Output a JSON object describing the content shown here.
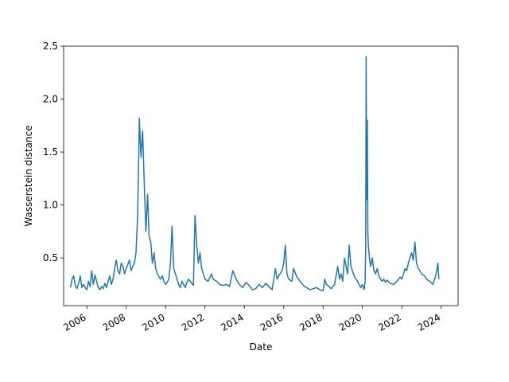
{
  "chart_data": {
    "type": "line",
    "title": "",
    "xlabel": "Date",
    "ylabel": "Wasserstein distance",
    "x_ticks": [
      "2006-01-01",
      "2008-01-01",
      "2010-01-01",
      "2012-01-01",
      "2014-01-01",
      "2016-01-01",
      "2018-01-01",
      "2020-01-01",
      "2022-01-01",
      "2024-01-01"
    ],
    "x_tick_labels": [
      "2006",
      "2008",
      "2010",
      "2012",
      "2014",
      "2016",
      "2018",
      "2020",
      "2022",
      "2024"
    ],
    "y_ticks": [
      0.5,
      1.0,
      1.5,
      2.0,
      2.5
    ],
    "y_tick_labels": [
      "0.5",
      "1.0",
      "1.5",
      "2.0",
      "2.5"
    ],
    "xlim": [
      "2004-10-27",
      "2024-11-10"
    ],
    "ylim": [
      0.05,
      2.5
    ],
    "grid": false,
    "series": [
      {
        "color": "#1f77b4",
        "x": [
          "2005-03-01",
          "2005-04-01",
          "2005-05-01",
          "2005-06-01",
          "2005-07-01",
          "2005-08-01",
          "2005-09-01",
          "2005-10-01",
          "2005-11-01",
          "2005-12-01",
          "2006-01-01",
          "2006-02-01",
          "2006-03-01",
          "2006-04-01",
          "2006-05-01",
          "2006-06-01",
          "2006-07-01",
          "2006-08-01",
          "2006-09-01",
          "2006-10-01",
          "2006-11-01",
          "2006-12-01",
          "2007-01-01",
          "2007-02-01",
          "2007-03-01",
          "2007-04-01",
          "2007-05-01",
          "2007-06-01",
          "2007-07-01",
          "2007-08-01",
          "2007-09-01",
          "2007-10-01",
          "2007-11-01",
          "2007-12-01",
          "2008-01-01",
          "2008-02-01",
          "2008-03-01",
          "2008-04-01",
          "2008-05-01",
          "2008-06-01",
          "2008-07-01",
          "2008-08-01",
          "2008-09-01",
          "2008-10-01",
          "2008-11-01",
          "2008-12-01",
          "2009-01-01",
          "2009-02-01",
          "2009-03-01",
          "2009-04-01",
          "2009-05-01",
          "2009-06-01",
          "2009-07-01",
          "2009-08-01",
          "2009-09-01",
          "2009-10-01",
          "2009-11-01",
          "2009-12-01",
          "2010-01-01",
          "2010-02-01",
          "2010-03-01",
          "2010-04-01",
          "2010-05-01",
          "2010-06-01",
          "2010-07-01",
          "2010-08-01",
          "2010-09-01",
          "2010-10-01",
          "2010-11-01",
          "2010-12-01",
          "2011-01-01",
          "2011-02-01",
          "2011-03-01",
          "2011-04-01",
          "2011-05-01",
          "2011-06-01",
          "2011-07-01",
          "2011-08-01",
          "2011-09-01",
          "2011-10-01",
          "2011-11-01",
          "2011-12-01",
          "2012-01-01",
          "2012-03-01",
          "2012-05-01",
          "2012-06-01",
          "2012-08-01",
          "2012-10-01",
          "2012-12-01",
          "2013-02-01",
          "2013-04-01",
          "2013-06-01",
          "2013-08-01",
          "2013-10-01",
          "2013-12-01",
          "2014-02-01",
          "2014-04-01",
          "2014-06-01",
          "2014-08-01",
          "2014-10-01",
          "2014-12-01",
          "2015-02-01",
          "2015-04-01",
          "2015-06-01",
          "2015-08-01",
          "2015-09-01",
          "2015-10-01",
          "2015-12-01",
          "2016-01-01",
          "2016-02-01",
          "2016-03-01",
          "2016-04-01",
          "2016-06-01",
          "2016-07-01",
          "2016-09-01",
          "2016-11-01",
          "2017-01-01",
          "2017-03-01",
          "2017-05-01",
          "2017-07-01",
          "2017-09-01",
          "2017-11-01",
          "2018-01-01",
          "2018-02-01",
          "2018-03-01",
          "2018-04-01",
          "2018-06-01",
          "2018-08-01",
          "2018-10-01",
          "2018-11-01",
          "2018-12-01",
          "2019-01-01",
          "2019-02-01",
          "2019-04-01",
          "2019-05-01",
          "2019-06-01",
          "2019-08-01",
          "2019-09-01",
          "2019-10-01",
          "2019-12-01",
          "2020-01-01",
          "2020-02-01",
          "2020-02-20",
          "2020-03-01",
          "2020-03-10",
          "2020-03-16",
          "2020-03-25",
          "2020-04-01",
          "2020-04-10",
          "2020-04-20",
          "2020-05-01",
          "2020-05-15",
          "2020-06-01",
          "2020-06-15",
          "2020-07-01",
          "2020-08-01",
          "2020-09-01",
          "2020-10-01",
          "2020-11-01",
          "2020-12-01",
          "2021-01-01",
          "2021-02-01",
          "2021-03-01",
          "2021-04-01",
          "2021-06-01",
          "2021-08-01",
          "2021-10-01",
          "2021-12-01",
          "2022-01-01",
          "2022-02-01",
          "2022-03-01",
          "2022-04-01",
          "2022-05-01",
          "2022-06-01",
          "2022-07-01",
          "2022-08-01",
          "2022-09-01",
          "2022-10-01",
          "2022-11-01",
          "2022-12-01",
          "2023-01-01",
          "2023-03-01",
          "2023-04-01",
          "2023-06-01",
          "2023-08-01",
          "2023-10-01",
          "2023-11-01",
          "2023-11-20"
        ],
        "y": [
          0.22,
          0.3,
          0.33,
          0.24,
          0.21,
          0.26,
          0.33,
          0.22,
          0.25,
          0.22,
          0.2,
          0.28,
          0.23,
          0.38,
          0.25,
          0.34,
          0.28,
          0.22,
          0.2,
          0.23,
          0.21,
          0.26,
          0.22,
          0.28,
          0.33,
          0.25,
          0.3,
          0.4,
          0.48,
          0.38,
          0.35,
          0.45,
          0.42,
          0.35,
          0.4,
          0.44,
          0.48,
          0.38,
          0.42,
          0.45,
          0.55,
          0.9,
          1.82,
          1.45,
          1.7,
          1.2,
          0.75,
          1.1,
          0.7,
          0.65,
          0.45,
          0.55,
          0.4,
          0.35,
          0.32,
          0.3,
          0.33,
          0.28,
          0.25,
          0.27,
          0.3,
          0.45,
          0.8,
          0.4,
          0.35,
          0.3,
          0.25,
          0.22,
          0.28,
          0.25,
          0.22,
          0.27,
          0.3,
          0.28,
          0.26,
          0.24,
          0.9,
          0.62,
          0.45,
          0.55,
          0.4,
          0.35,
          0.3,
          0.28,
          0.35,
          0.3,
          0.28,
          0.25,
          0.24,
          0.25,
          0.23,
          0.38,
          0.3,
          0.25,
          0.22,
          0.27,
          0.24,
          0.2,
          0.21,
          0.25,
          0.22,
          0.26,
          0.23,
          0.2,
          0.4,
          0.3,
          0.33,
          0.38,
          0.45,
          0.62,
          0.35,
          0.3,
          0.28,
          0.4,
          0.32,
          0.28,
          0.24,
          0.22,
          0.2,
          0.21,
          0.22,
          0.2,
          0.19,
          0.3,
          0.25,
          0.24,
          0.21,
          0.25,
          0.42,
          0.3,
          0.35,
          0.28,
          0.5,
          0.35,
          0.62,
          0.42,
          0.33,
          0.3,
          0.28,
          0.22,
          0.25,
          0.2,
          0.28,
          0.6,
          2.4,
          1.6,
          1.05,
          1.8,
          0.75,
          0.62,
          0.55,
          0.48,
          0.42,
          0.45,
          0.5,
          0.38,
          0.35,
          0.4,
          0.33,
          0.3,
          0.28,
          0.3,
          0.27,
          0.29,
          0.26,
          0.25,
          0.28,
          0.32,
          0.3,
          0.35,
          0.4,
          0.38,
          0.45,
          0.5,
          0.55,
          0.48,
          0.65,
          0.45,
          0.4,
          0.38,
          0.35,
          0.33,
          0.3,
          0.28,
          0.25,
          0.35,
          0.45,
          0.3
        ]
      }
    ]
  }
}
